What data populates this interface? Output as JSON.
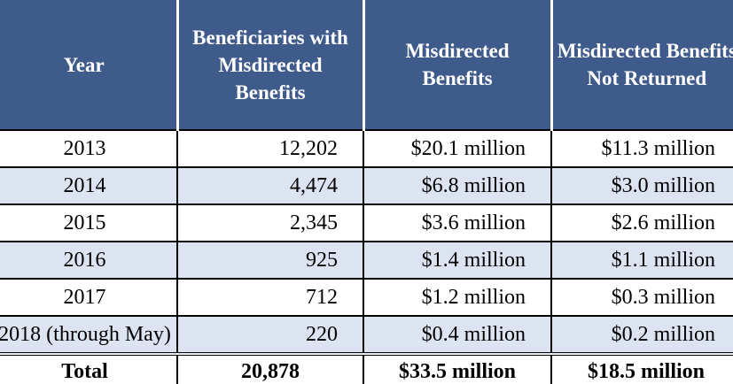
{
  "table": {
    "headers": [
      "Year",
      "Beneficiaries with Misdirected Benefits",
      "Misdirected Benefits",
      "Misdirected Benefits Not Returned"
    ],
    "rows": [
      {
        "year": "2013",
        "beneficiaries": "12,202",
        "benefits": "$20.1 million",
        "not_returned": "$11.3 million"
      },
      {
        "year": "2014",
        "beneficiaries": "4,474",
        "benefits": "$6.8 million",
        "not_returned": "$3.0 million"
      },
      {
        "year": "2015",
        "beneficiaries": "2,345",
        "benefits": "$3.6 million",
        "not_returned": "$2.6 million"
      },
      {
        "year": "2016",
        "beneficiaries": "925",
        "benefits": "$1.4 million",
        "not_returned": "$1.1 million"
      },
      {
        "year": "2017",
        "beneficiaries": "712",
        "benefits": "$1.2 million",
        "not_returned": "$0.3 million"
      },
      {
        "year": "2018 (through May)",
        "beneficiaries": "220",
        "benefits": "$0.4 million",
        "not_returned": "$0.2 million"
      }
    ],
    "total": {
      "label": "Total",
      "beneficiaries": "20,878",
      "benefits": "$33.5 million",
      "not_returned": "$18.5 million"
    },
    "colors": {
      "header_bg": "#3f5b8c",
      "alt_row_bg": "#dce4f1"
    }
  }
}
